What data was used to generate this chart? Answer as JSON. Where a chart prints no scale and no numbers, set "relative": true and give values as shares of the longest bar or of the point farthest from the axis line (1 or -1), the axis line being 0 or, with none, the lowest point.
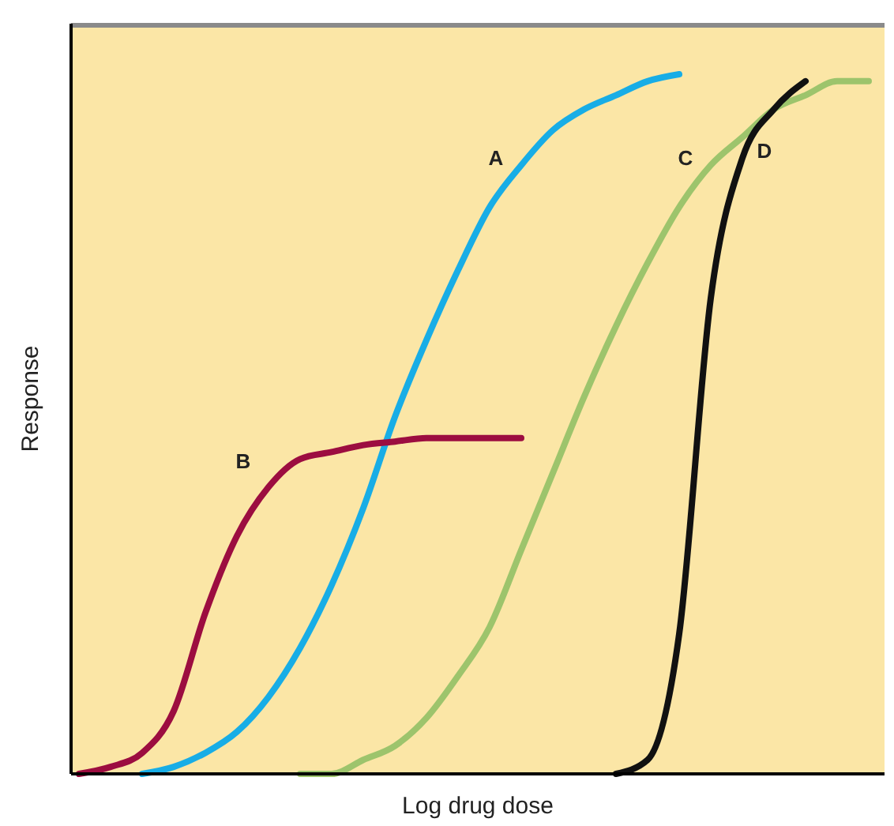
{
  "chart_data": {
    "type": "line",
    "relative": true,
    "xlabel": "Log drug dose",
    "ylabel": "Response",
    "categories": [
      null,
      null,
      null,
      null,
      null,
      null,
      null,
      null,
      null,
      null,
      null,
      null,
      null,
      null,
      null,
      null,
      null,
      null,
      null,
      null,
      null,
      null,
      null,
      null,
      null,
      null
    ],
    "series": [
      {
        "name": "A",
        "color": "#18ade6",
        "values": [
          null,
          null,
          0,
          0.01,
          0.03,
          0.06,
          0.11,
          0.18,
          0.27,
          0.38,
          0.51,
          0.62,
          0.72,
          0.81,
          0.87,
          0.92,
          0.95,
          0.97,
          0.99,
          1.0,
          null,
          null,
          null,
          null,
          null,
          null
        ]
      },
      {
        "name": "B",
        "color": "#9c0d40",
        "values": [
          0,
          0.01,
          0.03,
          0.09,
          0.23,
          0.34,
          0.41,
          0.45,
          0.46,
          0.47,
          0.475,
          0.48,
          0.48,
          0.48,
          0.48,
          null,
          null,
          null,
          null,
          null,
          null,
          null,
          null,
          null,
          null,
          null
        ]
      },
      {
        "name": "C",
        "color": "#9dc46c",
        "values": [
          null,
          null,
          null,
          null,
          null,
          null,
          null,
          0,
          0,
          0.02,
          0.04,
          0.08,
          0.14,
          0.21,
          0.32,
          0.43,
          0.54,
          0.64,
          0.73,
          0.81,
          0.87,
          0.91,
          0.95,
          0.97,
          0.99,
          0.99
        ]
      },
      {
        "name": "D",
        "color": "#111111",
        "values": [
          null,
          null,
          null,
          null,
          null,
          null,
          null,
          null,
          null,
          null,
          null,
          null,
          null,
          null,
          null,
          null,
          null,
          0,
          0.02,
          0.2,
          0.68,
          0.88,
          0.95,
          0.99,
          null,
          null
        ]
      }
    ]
  }
}
